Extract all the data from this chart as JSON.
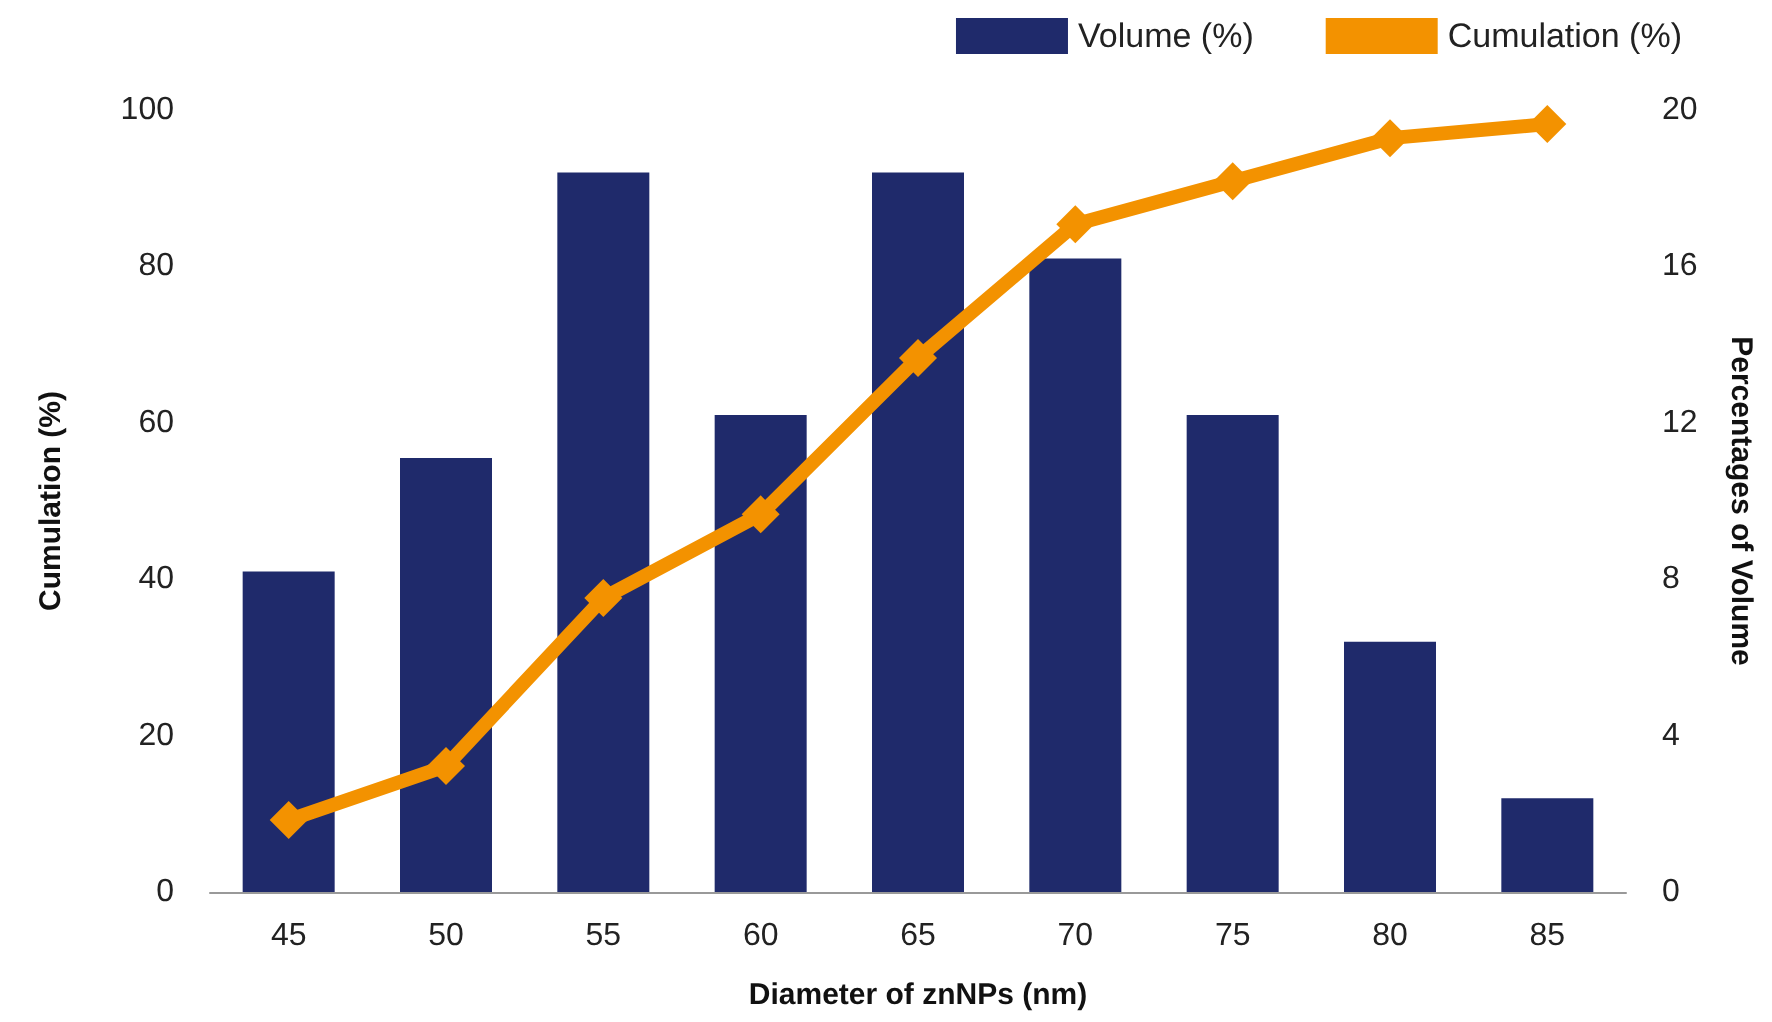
{
  "chart_data": {
    "type": "bar",
    "xlabel": "Diameter of znNPs (nm)",
    "ylabel": "Cumulation (%)",
    "y2label": "Percentages of Volume",
    "categories": [
      "45",
      "50",
      "55",
      "60",
      "65",
      "70",
      "75",
      "80",
      "85"
    ],
    "series": [
      {
        "name": "Volume (%)",
        "axis": "y2",
        "color": "#1f2a6b",
        "values": [
          8.2,
          11.1,
          18.4,
          12.2,
          18.4,
          16.2,
          12.2,
          6.4,
          2.4
        ]
      },
      {
        "name": "Cumulation (%)",
        "type": "line",
        "axis": "y",
        "color": "#f39200",
        "marker": "diamond",
        "line_style": "solid",
        "values": [
          9.2,
          16.1,
          37.6,
          48.3,
          68.3,
          85.4,
          90.9,
          96.4,
          98.2
        ]
      }
    ],
    "ylim": [
      0,
      100
    ],
    "yticks": [
      0,
      20,
      40,
      60,
      80,
      100
    ],
    "y2lim": [
      0,
      20
    ],
    "y2ticks": [
      0,
      4,
      8,
      12,
      16,
      20
    ],
    "grid": false,
    "legend": "top right"
  }
}
